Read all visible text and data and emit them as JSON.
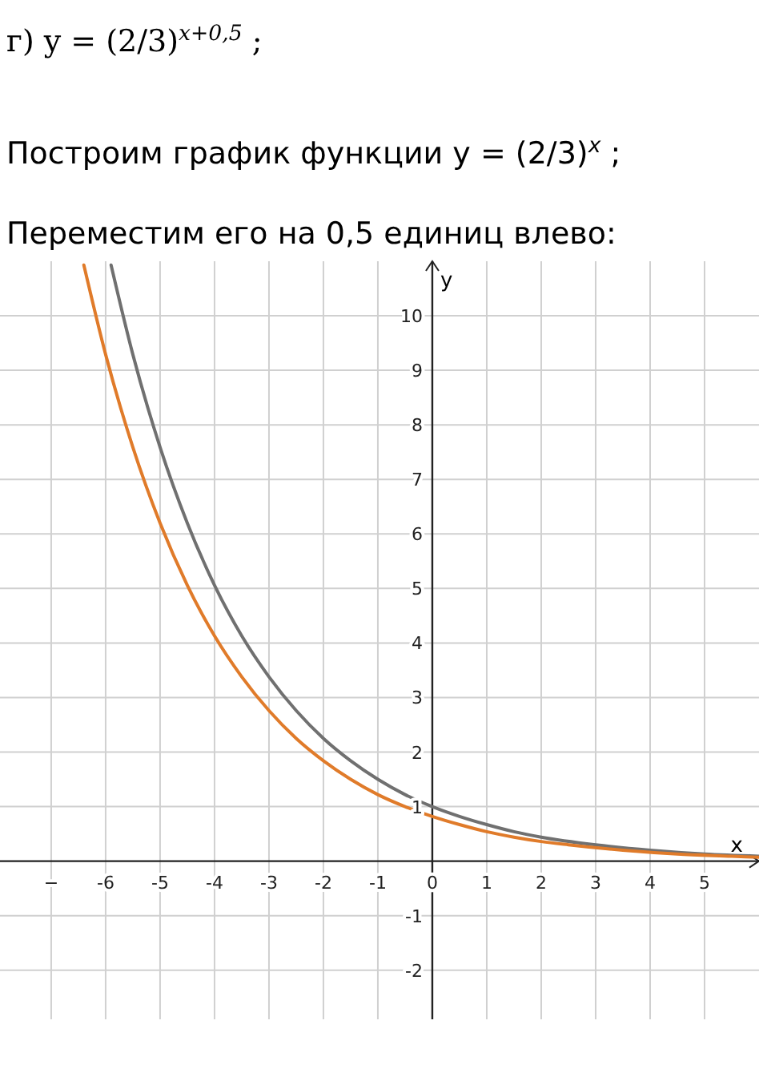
{
  "chart_data": {
    "type": "line",
    "title": "г) y = (2/3)$^{x+0,5}$ ;",
    "subtitle": "Построим график функции y = (2/3)$^{x}$ ;",
    "annotations": [
      "Переместим его на 0,5 единиц влево:"
    ],
    "xlabel": "x",
    "ylabel": "y",
    "xlim": [
      -7.94,
      6
    ],
    "ylim": [
      -2.9,
      11
    ],
    "xticks": [
      {
        "value": -7,
        "label": "−"
      },
      -6,
      -5,
      -4,
      -3,
      -2,
      -1,
      0,
      1,
      2,
      3,
      4,
      5
    ],
    "yticks": [
      -2,
      -1,
      1,
      2,
      3,
      4,
      5,
      6,
      7,
      8,
      9,
      10
    ],
    "grid": true,
    "line_style": "solid",
    "marker": "none",
    "series": [
      {
        "color": "#707070",
        "x": [
          -5.9,
          -5.5,
          -5,
          -4.5,
          -4,
          -3.5,
          -3,
          -2.5,
          -2,
          -1.5,
          -1,
          -0.5,
          0,
          0.5,
          1,
          1.5,
          2,
          3,
          4,
          5,
          6
        ],
        "values": [
          10.93,
          9.29,
          7.59,
          6.2,
          5.06,
          4.13,
          3.38,
          2.76,
          2.25,
          1.84,
          1.5,
          1.22,
          1,
          0.82,
          0.67,
          0.54,
          0.44,
          0.3,
          0.2,
          0.13,
          0.09
        ]
      },
      {
        "color": "#e07b2a",
        "x": [
          -6.4,
          -6,
          -5.5,
          -5,
          -4.5,
          -4,
          -3.5,
          -3,
          -2.5,
          -2,
          -1.5,
          -1,
          -0.5,
          0,
          0.5,
          1,
          1.5,
          2,
          2.5,
          3.5,
          4.5,
          5.5,
          6
        ],
        "values": [
          10.93,
          9.29,
          7.59,
          6.2,
          5.06,
          4.13,
          3.38,
          2.76,
          2.25,
          1.84,
          1.5,
          1.22,
          1,
          0.82,
          0.67,
          0.54,
          0.44,
          0.36,
          0.3,
          0.2,
          0.13,
          0.09,
          0.07
        ]
      }
    ]
  }
}
